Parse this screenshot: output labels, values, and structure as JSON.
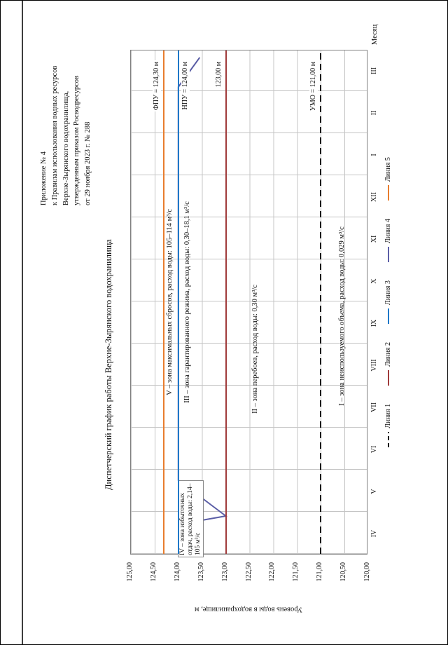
{
  "page": {
    "header_lines": [
      "Приложение № 4",
      "к Правилам использования водных ресурсов",
      "Верхне-Зырянского водохранилища,",
      "утвержденным приказом Росводресурсов",
      "от 29 ноября 2023 г. № 288"
    ],
    "title": "Диспетчерский график работы Верхне-Зырянского водохранилища"
  },
  "chart_data": {
    "type": "line",
    "title": "Диспетчерский график работы Верхне-Зырянского водохранилища",
    "xlabel": "Месяц",
    "ylabel": "Уровень воды в водохранилище, м",
    "x_categories": [
      "IV",
      "V",
      "VI",
      "VII",
      "VIII",
      "IX",
      "X",
      "XI",
      "XII",
      "I",
      "II",
      "III"
    ],
    "months_total": 12,
    "y_ticks": [
      "125,00",
      "124,50",
      "124,00",
      "123,50",
      "123,00",
      "122,50",
      "122,00",
      "121,50",
      "121,00",
      "120,50",
      "120,00"
    ],
    "ylim": [
      120.0,
      125.0
    ],
    "grid": true,
    "legend_position": "bottom",
    "reference_lines": [
      {
        "name": "Линия 5",
        "label": "ФПУ = 124,30 м",
        "level": 124.3,
        "color": "#e87d2e",
        "style": "solid",
        "label_side": "above"
      },
      {
        "name": "Линия 3",
        "label": "НПУ = 124,00 м",
        "level": 124.0,
        "color": "#1f78c8",
        "style": "solid",
        "label_side": "below"
      },
      {
        "name": "Линия 2",
        "label": "123,00 м",
        "level": 123.0,
        "color": "#a03b3b",
        "style": "solid",
        "label_side": "above"
      },
      {
        "name": "Линия 1",
        "label": "УМО = 121,00 м",
        "level": 121.0,
        "color": "#000000",
        "style": "dashed",
        "label_side": "above"
      }
    ],
    "dispatch_curve": {
      "name": "Линия 4",
      "color": "#5b5ea6",
      "points_month_level": [
        [
          0.7,
          124.0
        ],
        [
          0.9,
          123.0
        ],
        [
          1.75,
          124.0
        ],
        [
          11.1,
          124.0
        ],
        [
          11.8,
          123.55
        ]
      ]
    },
    "zones": [
      {
        "id": "V",
        "text": "V – зона максимальных сбросов, расход воды: 105–114 м³/с"
      },
      {
        "id": "III",
        "text": "III – зона гарантированного режима, расход воды: 0,30–18,1 м³/с"
      },
      {
        "id": "II",
        "text": "II – зона перебоев, расход воды: 0,30 м³/с"
      },
      {
        "id": "I",
        "text": "I – зона неиспользуемого объема, расход воды: 0,029 м³/с"
      },
      {
        "id": "IV",
        "text": "IV – зона избыточных отдач, расход воды: 2,14–105 м³/с"
      }
    ]
  },
  "legend": [
    {
      "label": "Линия 1",
      "color": "#000000",
      "style": "dashed"
    },
    {
      "label": "Линия 2",
      "color": "#a03b3b",
      "style": "solid"
    },
    {
      "label": "Линия 3",
      "color": "#1f78c8",
      "style": "solid"
    },
    {
      "label": "Линия 4",
      "color": "#5b5ea6",
      "style": "solid"
    },
    {
      "label": "Линия 5",
      "color": "#e87d2e",
      "style": "solid"
    }
  ]
}
